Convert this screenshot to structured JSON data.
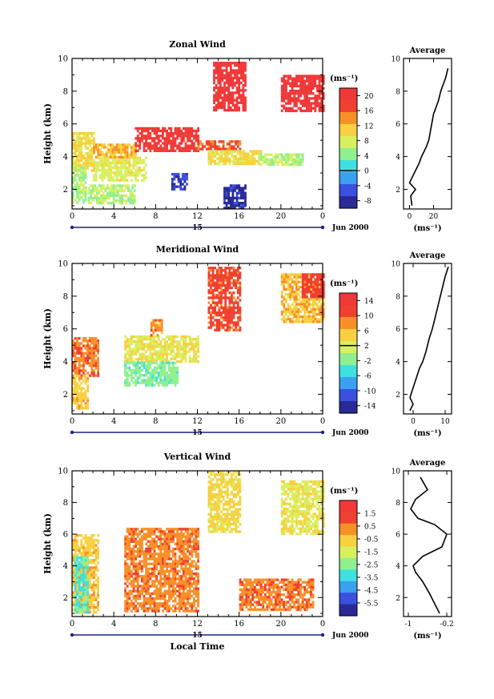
{
  "chart_data": [
    {
      "id": "zonal",
      "type": "heatmap",
      "title": "Zonal Wind",
      "ylabel": "Height (km)",
      "xticks": [
        "0",
        "4",
        "8",
        "12",
        "16",
        "20",
        "0"
      ],
      "xlim": [
        0,
        24
      ],
      "ylim": [
        0.8,
        10
      ],
      "yticks": [
        2,
        4,
        6,
        8,
        10
      ],
      "date_center": "15",
      "date_label": "Jun 2000",
      "colorbar": {
        "unit": "(ms⁻¹)",
        "ticks": [
          20,
          16,
          12,
          8,
          4,
          0,
          -4,
          -8
        ],
        "range": [
          -10,
          22
        ],
        "zero_line": 0
      },
      "regions": [
        {
          "x": [
            0,
            2
          ],
          "y": [
            3.2,
            5.5
          ],
          "value": 10
        },
        {
          "x": [
            0,
            1.2
          ],
          "y": [
            1.2,
            3.4
          ],
          "value": 6
        },
        {
          "x": [
            1.5,
            6
          ],
          "y": [
            1.2,
            2.3
          ],
          "value": 6
        },
        {
          "x": [
            2,
            7
          ],
          "y": [
            2.6,
            4.0
          ],
          "value": 8
        },
        {
          "x": [
            2,
            6
          ],
          "y": [
            4.0,
            4.8
          ],
          "value": 12
        },
        {
          "x": [
            6,
            12
          ],
          "y": [
            4.3,
            5.8
          ],
          "value": 20
        },
        {
          "x": [
            12,
            16
          ],
          "y": [
            4.4,
            5.0
          ],
          "value": 16
        },
        {
          "x": [
            13,
            18
          ],
          "y": [
            3.6,
            4.4
          ],
          "value": 10
        },
        {
          "x": [
            18,
            22
          ],
          "y": [
            3.5,
            4.2
          ],
          "value": 6
        },
        {
          "x": [
            13.5,
            16.5
          ],
          "y": [
            6.8,
            9.8
          ],
          "value": 21
        },
        {
          "x": [
            20,
            24
          ],
          "y": [
            6.8,
            9.0
          ],
          "value": 21
        },
        {
          "x": [
            9.5,
            11
          ],
          "y": [
            2.0,
            3.0
          ],
          "value": -6
        },
        {
          "x": [
            14.5,
            16.5
          ],
          "y": [
            0.9,
            2.3
          ],
          "value": -8
        }
      ],
      "average": {
        "xlim": [
          -5,
          35
        ],
        "xticks": [
          0,
          20
        ],
        "ylim": [
          0.8,
          10
        ],
        "yticks": [
          2,
          4,
          6,
          8,
          10
        ],
        "title": "Average",
        "xlabel": "(ms⁻¹)",
        "profile": [
          [
            2,
            1.0
          ],
          [
            1,
            1.6
          ],
          [
            5,
            2.0
          ],
          [
            0,
            2.4
          ],
          [
            4,
            3.0
          ],
          [
            8,
            3.6
          ],
          [
            10,
            4.0
          ],
          [
            14,
            4.6
          ],
          [
            16,
            5.0
          ],
          [
            18,
            5.8
          ],
          [
            20,
            6.6
          ],
          [
            24,
            7.4
          ],
          [
            26,
            8.0
          ],
          [
            30,
            8.8
          ],
          [
            32,
            9.4
          ]
        ]
      }
    },
    {
      "id": "meridional",
      "type": "heatmap",
      "title": "Meridional Wind",
      "ylabel": "Height (km)",
      "xticks": [
        "0",
        "4",
        "8",
        "12",
        "16",
        "20",
        "0"
      ],
      "xlim": [
        0,
        24
      ],
      "ylim": [
        0.8,
        10
      ],
      "yticks": [
        2,
        4,
        6,
        8,
        10
      ],
      "date_center": "15",
      "date_label": "Jun 2000",
      "colorbar": {
        "unit": "(ms⁻¹)",
        "ticks": [
          14,
          10,
          6,
          2,
          -2,
          -6,
          -10,
          -14
        ],
        "range": [
          -16,
          16
        ],
        "zero_line": 2
      },
      "regions": [
        {
          "x": [
            0,
            2.5
          ],
          "y": [
            3.2,
            5.5
          ],
          "value": 9
        },
        {
          "x": [
            0,
            1.5
          ],
          "y": [
            1.2,
            3.2
          ],
          "value": 5
        },
        {
          "x": [
            5,
            12
          ],
          "y": [
            4.0,
            5.6
          ],
          "value": 3
        },
        {
          "x": [
            5,
            10
          ],
          "y": [
            2.6,
            4.0
          ],
          "value": -2
        },
        {
          "x": [
            7.5,
            8.5
          ],
          "y": [
            5.6,
            6.6
          ],
          "value": 8
        },
        {
          "x": [
            13,
            16
          ],
          "y": [
            6.0,
            9.8
          ],
          "value": 11
        },
        {
          "x": [
            20,
            24
          ],
          "y": [
            6.4,
            9.4
          ],
          "value": 6
        },
        {
          "x": [
            22,
            24
          ],
          "y": [
            8.0,
            9.4
          ],
          "value": 12
        }
      ],
      "average": {
        "xlim": [
          -3,
          12
        ],
        "xticks": [
          0,
          10
        ],
        "ylim": [
          0.8,
          10
        ],
        "yticks": [
          2,
          4,
          6,
          8,
          10
        ],
        "title": "Average",
        "xlabel": "(ms⁻¹)",
        "profile": [
          [
            -1,
            1.0
          ],
          [
            0,
            1.4
          ],
          [
            -1,
            1.8
          ],
          [
            0,
            2.4
          ],
          [
            1,
            3.0
          ],
          [
            2,
            3.6
          ],
          [
            3,
            4.0
          ],
          [
            4,
            4.6
          ],
          [
            5,
            5.4
          ],
          [
            6,
            6.0
          ],
          [
            7,
            6.8
          ],
          [
            8,
            7.6
          ],
          [
            9,
            8.4
          ],
          [
            10,
            9.2
          ],
          [
            11,
            9.8
          ]
        ]
      }
    },
    {
      "id": "vertical",
      "type": "heatmap",
      "title": "Vertical Wind",
      "ylabel": "Height (km)",
      "xlabel": "Local Time",
      "xticks": [
        "0",
        "4",
        "8",
        "12",
        "16",
        "20",
        "0"
      ],
      "xlim": [
        0,
        24
      ],
      "ylim": [
        0.8,
        10
      ],
      "yticks": [
        2,
        4,
        6,
        8,
        10
      ],
      "date_center": "15",
      "date_label": "Jun 2000",
      "colorbar": {
        "unit": "(ms⁻¹)",
        "ticks": [
          1.5,
          0.5,
          -0.5,
          -1.5,
          -2.5,
          -3.5,
          -4.5,
          -5.5
        ],
        "range": [
          -6.5,
          2.5
        ]
      },
      "regions": [
        {
          "x": [
            0,
            2.5
          ],
          "y": [
            1.0,
            6.0
          ],
          "value": -0.5
        },
        {
          "x": [
            0.2,
            1.5
          ],
          "y": [
            1.0,
            4.6
          ],
          "value": -3.0
        },
        {
          "x": [
            5,
            12
          ],
          "y": [
            1.2,
            6.4
          ],
          "value": 0.4
        },
        {
          "x": [
            13,
            16
          ],
          "y": [
            6.2,
            10.0
          ],
          "value": -0.8
        },
        {
          "x": [
            20,
            24
          ],
          "y": [
            6.0,
            9.4
          ],
          "value": -1.2
        },
        {
          "x": [
            16,
            23
          ],
          "y": [
            1.2,
            3.2
          ],
          "value": 0.5
        }
      ],
      "average": {
        "xlim": [
          -1.1,
          -0.1
        ],
        "xticks": [
          -1.0,
          -0.2
        ],
        "ylim": [
          0.8,
          10
        ],
        "yticks": [
          2,
          4,
          6,
          8,
          10
        ],
        "title": "Average",
        "xlabel": "(ms⁻¹)",
        "profile": [
          [
            -0.35,
            1.0
          ],
          [
            -0.45,
            1.6
          ],
          [
            -0.55,
            2.2
          ],
          [
            -0.7,
            3.0
          ],
          [
            -0.85,
            3.6
          ],
          [
            -0.9,
            4.0
          ],
          [
            -0.7,
            4.6
          ],
          [
            -0.3,
            5.2
          ],
          [
            -0.2,
            6.0
          ],
          [
            -0.45,
            6.6
          ],
          [
            -0.8,
            7.0
          ],
          [
            -0.95,
            7.6
          ],
          [
            -0.85,
            8.2
          ],
          [
            -0.6,
            8.8
          ],
          [
            -0.75,
            9.6
          ]
        ]
      }
    }
  ],
  "colormap": [
    "#2a2a96",
    "#3a50e0",
    "#3aa0f0",
    "#40e0e0",
    "#90f090",
    "#d8f060",
    "#f8d040",
    "#f89028",
    "#f04030",
    "#f03838"
  ]
}
